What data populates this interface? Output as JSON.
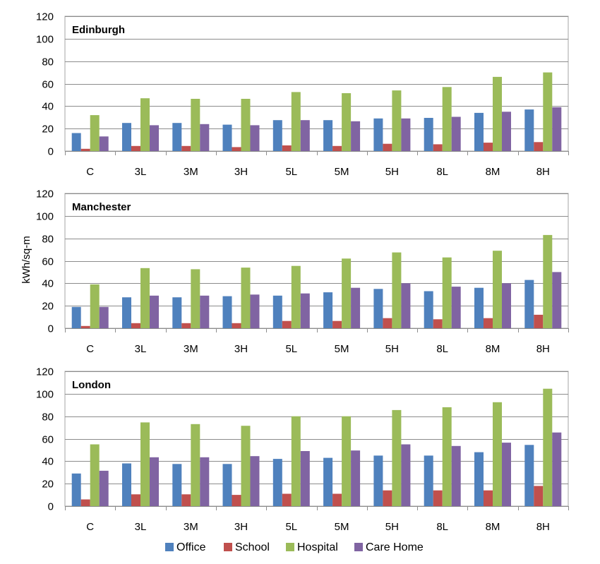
{
  "chart_data": {
    "type": "bar",
    "ylabel": "kWh/sq-m",
    "ylim": [
      0,
      120
    ],
    "yticks": [
      "0",
      "20",
      "40",
      "60",
      "80",
      "100",
      "120"
    ],
    "categories": [
      "C",
      "3L",
      "3M",
      "3H",
      "5L",
      "5M",
      "5H",
      "8L",
      "8M",
      "8H"
    ],
    "legend_position": "bottom",
    "grid": true,
    "colors": {
      "Office": "#4f81bd",
      "School": "#c0504d",
      "Hospital": "#9bbb59",
      "Care Home": "#8064a2"
    },
    "legend": [
      "Office",
      "School",
      "Hospital",
      "Care Home"
    ],
    "panels": [
      {
        "title": "Edinburgh",
        "series": [
          {
            "name": "Office",
            "values": [
              16,
              25,
              25,
              23.5,
              27.5,
              27.5,
              29,
              29.5,
              34,
              37
            ]
          },
          {
            "name": "School",
            "values": [
              2,
              4.5,
              4.5,
              3.5,
              5,
              4.5,
              6.5,
              6,
              7.5,
              8
            ]
          },
          {
            "name": "Hospital",
            "values": [
              32,
              47,
              46.5,
              46.5,
              52.5,
              51.5,
              54,
              57,
              66,
              70
            ]
          },
          {
            "name": "Care Home",
            "values": [
              13,
              23,
              24,
              23,
              27.5,
              26.5,
              29,
              30.5,
              35,
              39
            ]
          }
        ]
      },
      {
        "title": "Manchester",
        "series": [
          {
            "name": "Office",
            "values": [
              19,
              27.5,
              27.5,
              28.5,
              29,
              32,
              35,
              33,
              36,
              43
            ]
          },
          {
            "name": "School",
            "values": [
              2,
              4.5,
              4.5,
              4.5,
              6.5,
              6.5,
              9,
              8,
              9,
              12
            ]
          },
          {
            "name": "Hospital",
            "values": [
              39,
              53.5,
              52.5,
              54,
              55.5,
              62,
              67.5,
              63,
              69,
              83
            ]
          },
          {
            "name": "Care Home",
            "values": [
              19,
              29,
              29,
              30,
              31,
              36,
              40,
              37,
              40,
              50
            ]
          }
        ]
      },
      {
        "title": "London",
        "series": [
          {
            "name": "Office",
            "values": [
              29,
              38,
              37.5,
              37.5,
              42,
              43,
              45,
              45,
              48,
              54.5
            ]
          },
          {
            "name": "School",
            "values": [
              6,
              10.5,
              10.5,
              10,
              11,
              11,
              14,
              14,
              14,
              18
            ]
          },
          {
            "name": "Hospital",
            "values": [
              55,
              74.5,
              73,
              71.5,
              80,
              80,
              85.5,
              88,
              92.5,
              104.5
            ]
          },
          {
            "name": "Care Home",
            "values": [
              31.5,
              43.5,
              43.5,
              44.5,
              49,
              49.5,
              55,
              53.5,
              56.5,
              65.5
            ]
          }
        ]
      }
    ]
  }
}
